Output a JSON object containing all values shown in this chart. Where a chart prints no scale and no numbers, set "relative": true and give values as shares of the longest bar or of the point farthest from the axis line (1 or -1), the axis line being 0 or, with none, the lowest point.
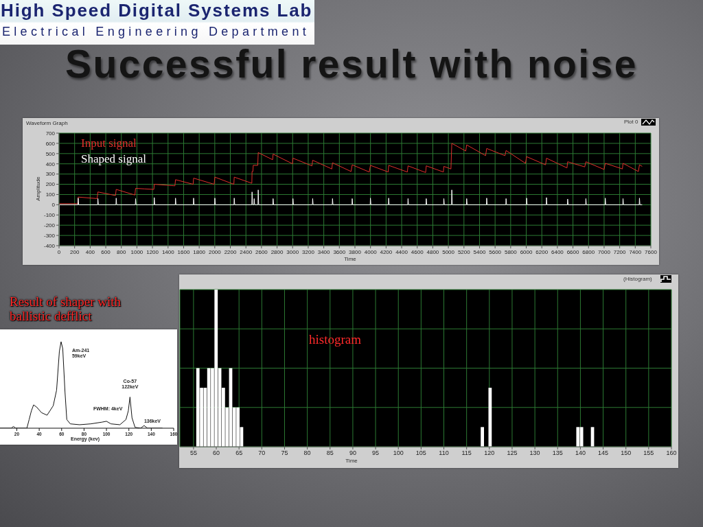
{
  "chart_data": [
    {
      "type": "line",
      "title": "Waveform Graph",
      "xlabel": "Time",
      "ylabel": "Amplitude",
      "series": [
        {
          "name": "Input signal",
          "color": "#e0302c",
          "x": [
            0,
            240,
            246,
            490,
            499,
            725,
            734,
            974,
            983,
            1100,
            1218,
            1223,
            1488,
            1496,
            1722,
            1728,
            1992,
            2001,
            2245,
            2250,
            2476,
            2479,
            2490,
            2494,
            2552,
            2558,
            2743,
            2749,
            2999,
            3004,
            3248,
            3257,
            3503,
            3512,
            3750,
            3765,
            3984,
            3999,
            4227,
            4233,
            4473,
            4482,
            4708,
            4716,
            4936,
            4942,
            5033,
            5044,
            5223,
            5235,
            5478,
            5492,
            5727,
            5741,
            5990,
            6005,
            6248,
            6260,
            6523,
            6532,
            6751,
            6766,
            7000,
            7015,
            7235,
            7243,
            7440,
            7454,
            7489
          ],
          "values": [
            10,
            10,
            75,
            60,
            125,
            90,
            150,
            95,
            160,
            155,
            150,
            200,
            185,
            245,
            200,
            260,
            200,
            270,
            200,
            270,
            210,
            325,
            325,
            385,
            385,
            510,
            440,
            495,
            400,
            455,
            380,
            435,
            350,
            410,
            325,
            390,
            320,
            385,
            320,
            385,
            320,
            380,
            315,
            380,
            320,
            375,
            350,
            600,
            525,
            585,
            480,
            550,
            480,
            530,
            405,
            470,
            390,
            455,
            360,
            420,
            370,
            420,
            345,
            405,
            350,
            405,
            325,
            390,
            375
          ]
        },
        {
          "name": "Shaped signal",
          "color": "#ffffff",
          "x": [
            0,
            4,
            243,
            246,
            252,
            496,
            499,
            505,
            731,
            734,
            740,
            980,
            983,
            989,
            1220,
            1223,
            1229,
            1493,
            1496,
            1502,
            1725,
            1728,
            1734,
            1998,
            2001,
            2007,
            2247,
            2250,
            2256,
            2476,
            2479,
            2485,
            2503,
            2506,
            2512,
            2555,
            2558,
            2564,
            2746,
            2749,
            2755,
            3001,
            3004,
            3010,
            3254,
            3257,
            3263,
            3509,
            3512,
            3518,
            3762,
            3765,
            3771,
            3996,
            3999,
            4005,
            4230,
            4233,
            4239,
            4479,
            4482,
            4488,
            4713,
            4716,
            4722,
            4939,
            4942,
            4948,
            5041,
            5044,
            5050,
            5232,
            5235,
            5241,
            5489,
            5492,
            5498,
            5738,
            5741,
            5747,
            6002,
            6005,
            6011,
            6257,
            6260,
            6266,
            6529,
            6532,
            6538,
            6763,
            6766,
            6772,
            7012,
            7015,
            7021,
            7240,
            7243,
            7249,
            7451,
            7454,
            7460,
            7489
          ],
          "values": [
            -400,
            0,
            0,
            65,
            0,
            0,
            60,
            0,
            0,
            65,
            0,
            0,
            60,
            0,
            0,
            70,
            0,
            0,
            65,
            0,
            0,
            65,
            0,
            0,
            65,
            0,
            0,
            65,
            0,
            0,
            125,
            0,
            0,
            60,
            0,
            0,
            145,
            0,
            0,
            60,
            0,
            0,
            60,
            0,
            0,
            60,
            0,
            0,
            60,
            0,
            0,
            60,
            0,
            0,
            65,
            0,
            0,
            65,
            0,
            0,
            60,
            0,
            0,
            60,
            0,
            0,
            60,
            0,
            0,
            145,
            0,
            0,
            60,
            0,
            0,
            65,
            0,
            0,
            60,
            0,
            0,
            65,
            0,
            0,
            70,
            0,
            0,
            55,
            0,
            0,
            60,
            0,
            0,
            65,
            0,
            0,
            60,
            0,
            0,
            65,
            0,
            0
          ]
        }
      ],
      "xlim": [
        0,
        7600
      ],
      "xticks": [
        0,
        200,
        400,
        600,
        800,
        1000,
        1200,
        1400,
        1600,
        1800,
        2000,
        2200,
        2400,
        2600,
        2800,
        3000,
        3200,
        3400,
        3600,
        3800,
        4000,
        4200,
        4400,
        4600,
        4800,
        5000,
        5200,
        5400,
        5600,
        5800,
        6000,
        6200,
        6400,
        6600,
        6800,
        7000,
        7200,
        7400,
        7600
      ],
      "ylim": [
        -400,
        700
      ],
      "yticks": [
        -400,
        -300,
        -200,
        -100,
        0,
        100,
        200,
        300,
        400,
        500,
        600,
        700
      ],
      "grid": true,
      "legend": "top left",
      "annotations": [
        "High Speed Digital Systems Lab",
        "Electrical Engineering Department",
        "Successful result with noise",
        "Plot 0"
      ]
    },
    {
      "type": "line",
      "title": "Result of shaper with ballistic defflict",
      "xlabel": "Energy (kev)",
      "x": [
        5,
        15,
        17,
        19,
        29,
        31,
        33,
        35,
        38,
        42,
        47,
        49.5,
        52.5,
        55.5,
        58,
        59.5,
        61,
        63,
        64.6,
        67.7,
        76,
        86,
        96,
        100,
        104,
        112,
        117.4,
        119.5,
        121,
        122.8,
        125.5,
        130.5,
        133.6,
        136.6,
        150
      ],
      "values": [
        0,
        0,
        0.02,
        0,
        0,
        0.1,
        0.2,
        0.27,
        0.24,
        0.18,
        0.15,
        0.2,
        0.26,
        0.44,
        0.89,
        1,
        0.92,
        0.42,
        0.1,
        0.05,
        0.04,
        0.05,
        0.07,
        0.08,
        0.05,
        0.04,
        0.1,
        0.2,
        0.36,
        0.12,
        0.01,
        0,
        0.03,
        0,
        0
      ],
      "color": "#111111",
      "relative": true,
      "xlim": [
        5,
        160
      ],
      "xticks": [
        20,
        40,
        60,
        80,
        100,
        120,
        140,
        160
      ],
      "annotations": [
        {
          "text": "Am-241 59keV",
          "x": 59.5,
          "y": 1
        },
        {
          "text": "Co-57 122keV",
          "x": 121,
          "y": 0.36
        },
        {
          "text": "FWHM: 4keV",
          "x": 121,
          "y": 0.17
        },
        {
          "text": "136keV",
          "x": 133.6,
          "y": 0.03
        }
      ]
    },
    {
      "type": "bar",
      "xlabel": "Time",
      "x": [
        56.0,
        56.8,
        57.6,
        58.4,
        59.2,
        60.0,
        60.8,
        61.6,
        62.4,
        63.2,
        64.0,
        64.8,
        65.6,
        118.5,
        120.2,
        139.5,
        140.3,
        142.7
      ],
      "values": [
        0.5,
        0.375,
        0.375,
        0.5,
        0.5,
        1,
        0.5,
        0.375,
        0.25,
        0.5,
        0.25,
        0.25,
        0.125,
        0.125,
        0.375,
        0.125,
        0.125,
        0.125
      ],
      "color": "#ffffff",
      "relative": true,
      "xlim": [
        52,
        160
      ],
      "xticks": [
        55,
        60,
        65,
        70,
        75,
        80,
        85,
        90,
        95,
        100,
        105,
        110,
        115,
        120,
        125,
        130,
        135,
        140,
        145,
        150,
        155,
        160
      ],
      "grid": true,
      "annotations": [
        "histogram",
        "(Histogram)"
      ]
    }
  ]
}
